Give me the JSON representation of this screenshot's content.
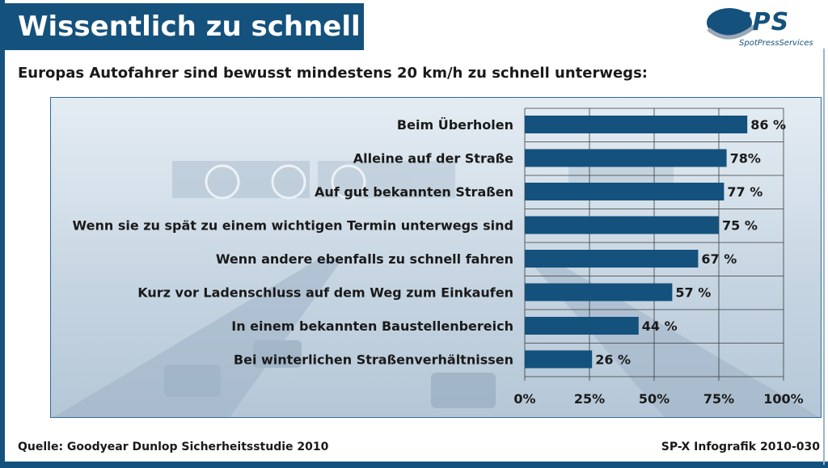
{
  "header": {
    "title": "Wissentlich zu schnell",
    "subtitle": "Europas Autofahrer sind bewusst mindestens 20 km/h zu schnell unterwegs:"
  },
  "logo": {
    "name": "SPS",
    "tagline": "SpotPressServices",
    "color": "#14517d"
  },
  "colors": {
    "bar": "#14517d",
    "frame": "#14517d",
    "grid": "#3a3a3a"
  },
  "chart_data": {
    "type": "bar",
    "orientation": "horizontal",
    "categories": [
      "Beim  Überholen",
      "Alleine auf der Straße",
      "Auf gut bekannten Straßen",
      "Wenn sie zu spät zu einem wichtigen Termin unterwegs sind",
      "Wenn andere ebenfalls zu schnell fahren",
      "Kurz vor Ladenschluss auf dem Weg zum Einkaufen",
      "In einem bekannten Baustellenbereich",
      "Bei winterlichen Straßenverhältnissen"
    ],
    "values": [
      86,
      78,
      77,
      75,
      67,
      57,
      44,
      26
    ],
    "value_labels": [
      "86 %",
      "78%",
      "77 %",
      "75 %",
      "67 %",
      "57 %",
      "44 %",
      "26 %"
    ],
    "xlim": [
      0,
      100
    ],
    "ticks": [
      0,
      25,
      50,
      75,
      100
    ],
    "tick_labels": [
      "0%",
      "25%",
      "50%",
      "75%",
      "100%"
    ],
    "grid": true
  },
  "footer": {
    "source": "Quelle: Goodyear Dunlop Sicherheitsstudie 2010",
    "credit": "SP-X Infografik 2010-030"
  }
}
